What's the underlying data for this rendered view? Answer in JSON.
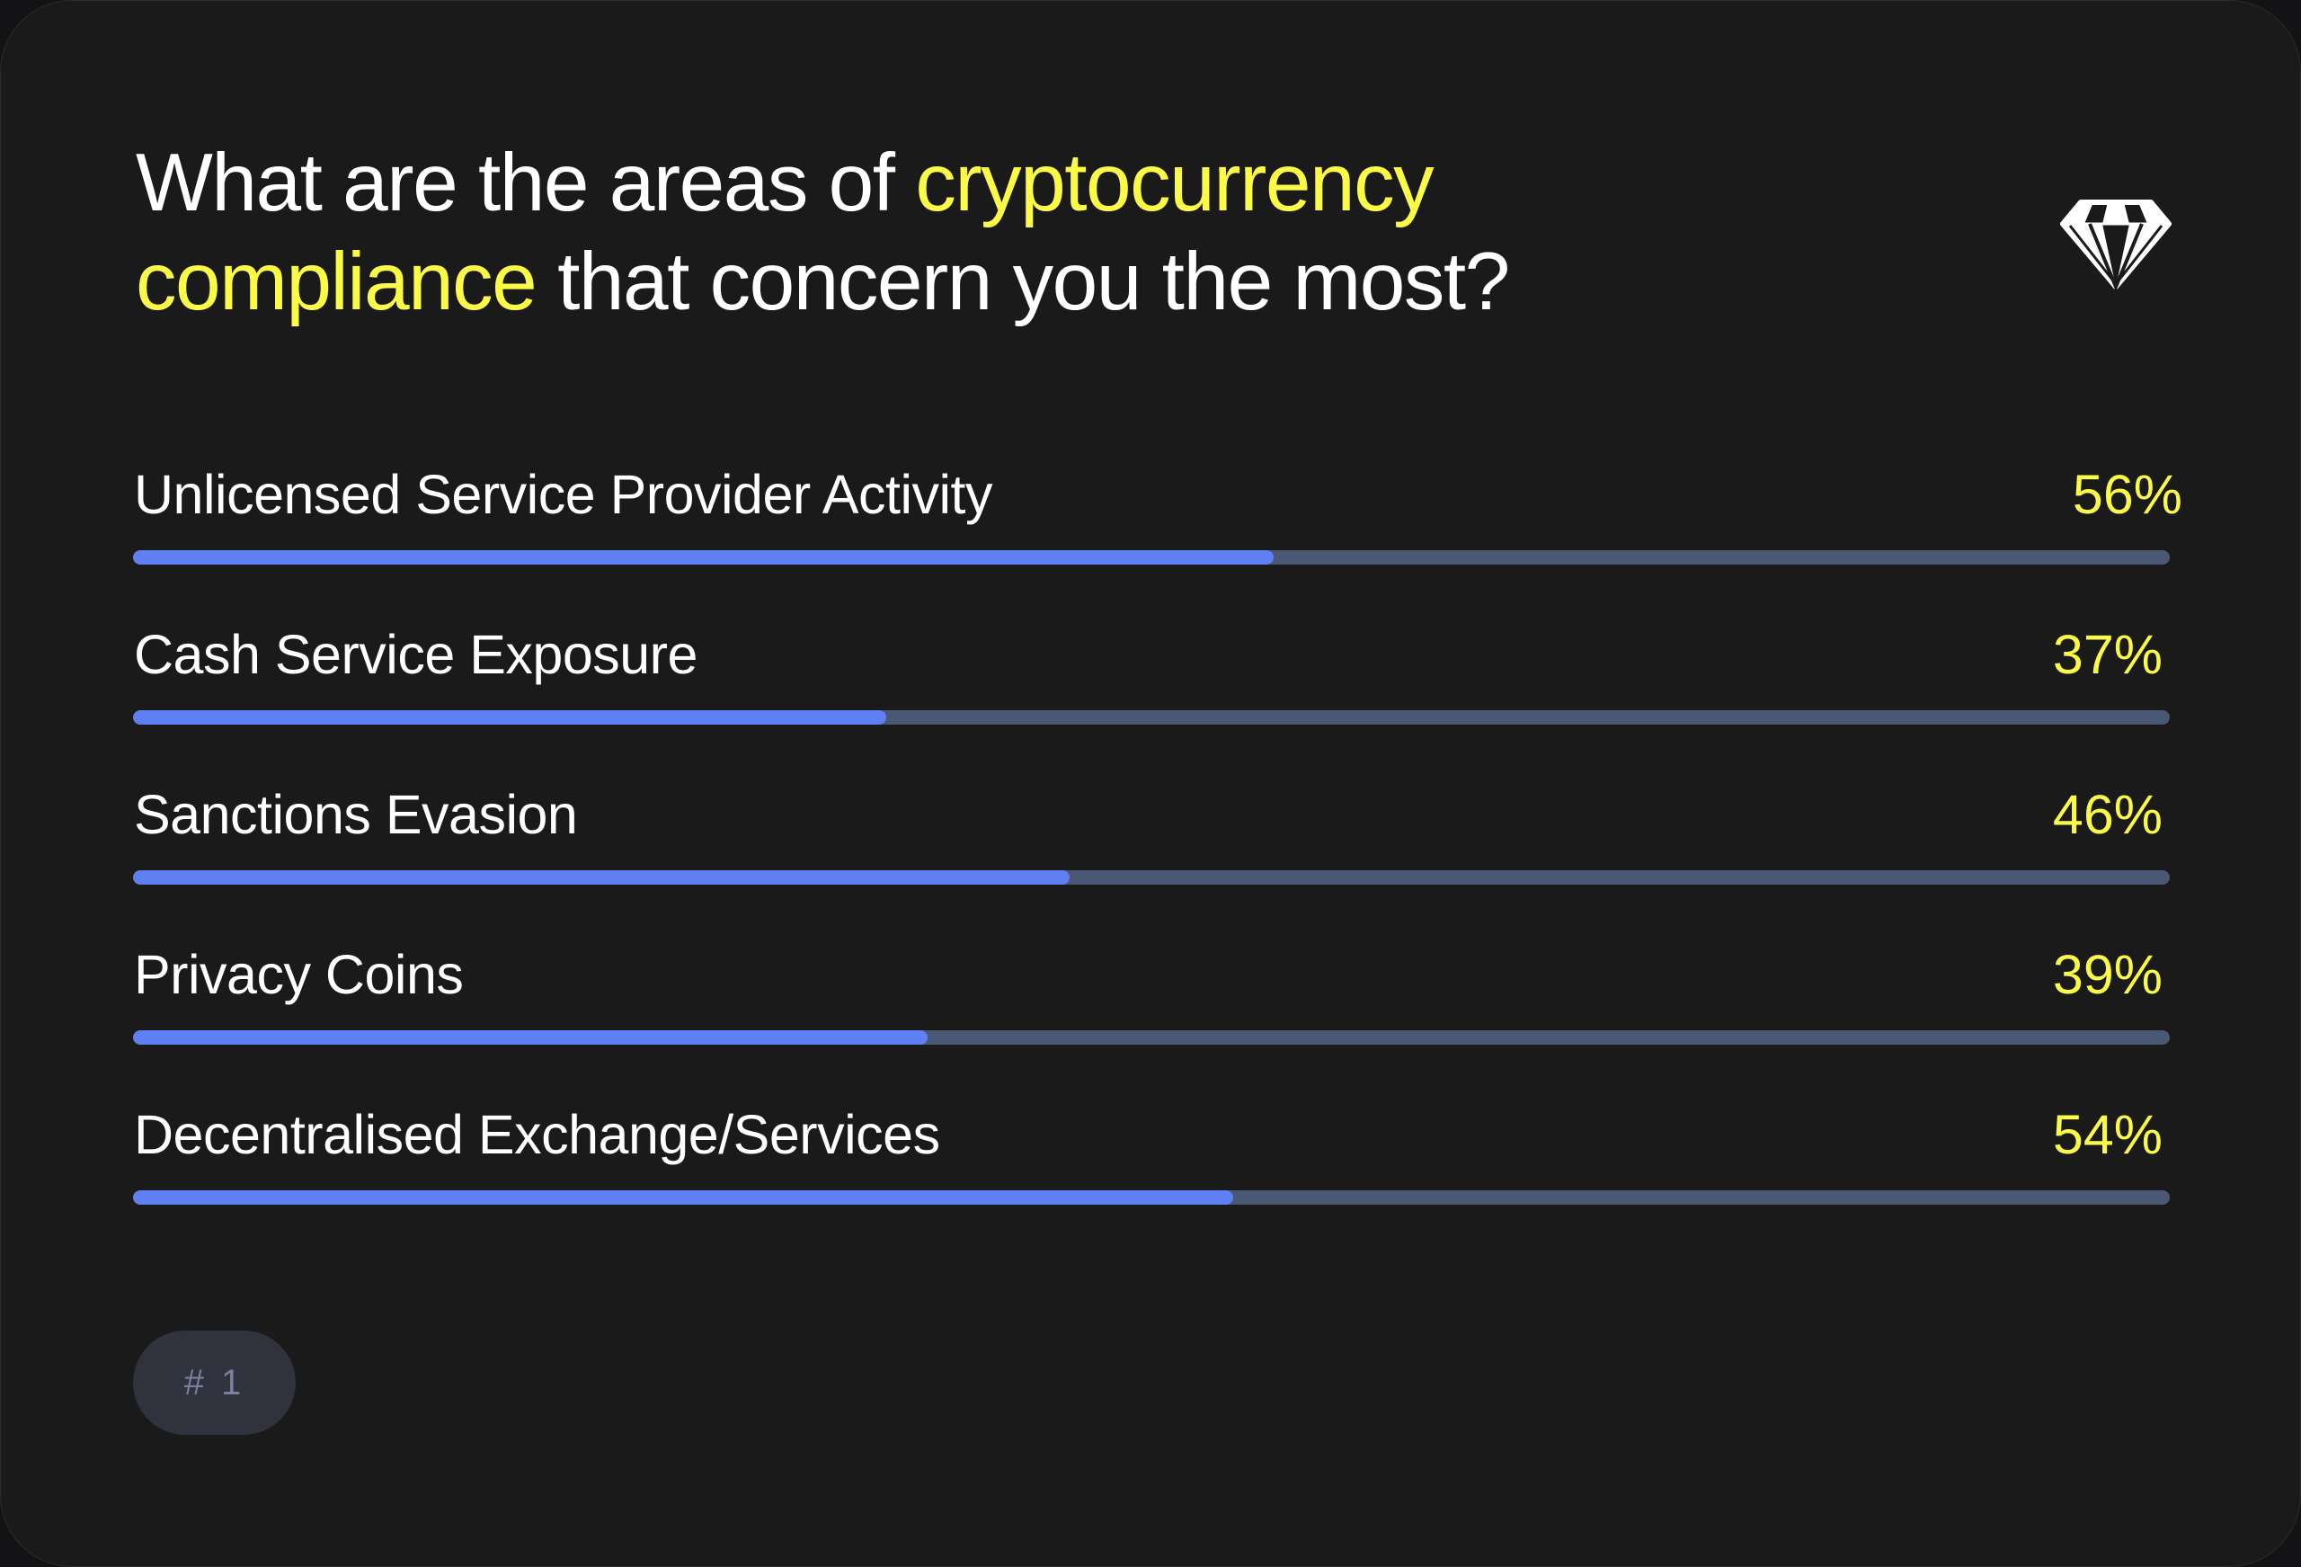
{
  "title": {
    "part1": "What are the areas of ",
    "highlight1": "cryptocurrency",
    "highlight2": "compliance",
    "part2": " that concern you the most?"
  },
  "icon": "diamond-icon",
  "colors": {
    "background": "#1a1a1b",
    "highlight": "#fbfb47",
    "bar_fill": "#5f80f3",
    "bar_track": "#4a5873",
    "pill_bg": "#30333d",
    "pill_text": "#7b80a0"
  },
  "rows": [
    {
      "label": "Unlicensed Service Provider Activity",
      "value_text": "56%",
      "value": 56
    },
    {
      "label": "Cash Service Exposure",
      "value_text": "37%",
      "value": 37
    },
    {
      "label": "Sanctions Evasion",
      "value_text": "46%",
      "value": 46
    },
    {
      "label": "Privacy Coins",
      "value_text": "39%",
      "value": 39
    },
    {
      "label": "Decentralised Exchange/Services",
      "value_text": "54%",
      "value": 54
    }
  ],
  "badge": {
    "label": "# 1"
  },
  "chart_data": {
    "type": "bar",
    "orientation": "horizontal",
    "title": "What are the areas of cryptocurrency compliance that concern you the most?",
    "categories": [
      "Unlicensed Service Provider Activity",
      "Cash Service Exposure",
      "Sanctions Evasion",
      "Privacy Coins",
      "Decentralised Exchange/Services"
    ],
    "values": [
      56,
      37,
      46,
      39,
      54
    ],
    "unit": "%",
    "xlim": [
      0,
      100
    ],
    "xlabel": "",
    "ylabel": "",
    "grid": false,
    "legend": null
  }
}
